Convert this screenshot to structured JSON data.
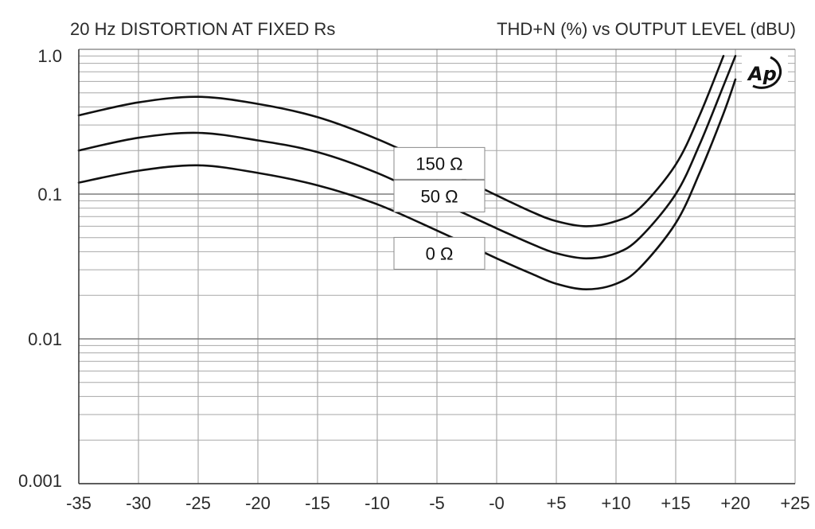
{
  "chart_data": {
    "type": "line",
    "title": "20 Hz DISTORTION AT FIXED Rs",
    "subtitle": "THD+N (%) vs OUTPUT LEVEL (dBU)",
    "x_scale": "linear",
    "y_scale": "log",
    "xlim": [
      -35,
      25
    ],
    "ylim": [
      0.001,
      1.0
    ],
    "x_ticks": [
      -35,
      -30,
      -25,
      -20,
      -15,
      -10,
      -5,
      0,
      5,
      10,
      15,
      20,
      25
    ],
    "x_tick_labels": [
      "-35",
      "-30",
      "-25",
      "-20",
      "-15",
      "-10",
      "-5",
      "-0",
      "+5",
      "+10",
      "+15",
      "+20",
      "+25"
    ],
    "y_ticks": [
      1.0,
      0.1,
      0.01,
      0.001
    ],
    "y_tick_labels": [
      "1.0",
      "0.1",
      "0.01",
      "0.001"
    ],
    "grid": true,
    "series": [
      {
        "name": "150 Ω",
        "x": [
          -35,
          -30,
          -25,
          -20,
          -15,
          -10,
          -5,
          0,
          3,
          5,
          7.5,
          10,
          12,
          15,
          17,
          19
        ],
        "y": [
          0.35,
          0.43,
          0.47,
          0.42,
          0.34,
          0.24,
          0.155,
          0.098,
          0.075,
          0.065,
          0.06,
          0.065,
          0.08,
          0.16,
          0.35,
          0.9
        ]
      },
      {
        "name": "50 Ω",
        "x": [
          -35,
          -30,
          -25,
          -20,
          -15,
          -10,
          -5,
          0,
          3,
          5,
          7.5,
          10,
          12,
          15,
          17,
          19,
          20
        ],
        "y": [
          0.2,
          0.245,
          0.265,
          0.235,
          0.195,
          0.14,
          0.09,
          0.058,
          0.045,
          0.039,
          0.036,
          0.039,
          0.05,
          0.1,
          0.22,
          0.56,
          0.9
        ]
      },
      {
        "name": "0 Ω",
        "x": [
          -35,
          -30,
          -25,
          -20,
          -15,
          -10,
          -5,
          0,
          3,
          5,
          7.5,
          10,
          12,
          15,
          17,
          19,
          20
        ],
        "y": [
          0.12,
          0.145,
          0.158,
          0.14,
          0.115,
          0.085,
          0.056,
          0.036,
          0.028,
          0.024,
          0.022,
          0.024,
          0.031,
          0.063,
          0.14,
          0.36,
          0.62
        ]
      }
    ],
    "annotations": [
      {
        "text": "150 Ω",
        "series": "150 Ω"
      },
      {
        "text": "50 Ω",
        "series": "50 Ω"
      },
      {
        "text": "0 Ω",
        "series": "0 Ω"
      }
    ],
    "logo": "AP"
  }
}
